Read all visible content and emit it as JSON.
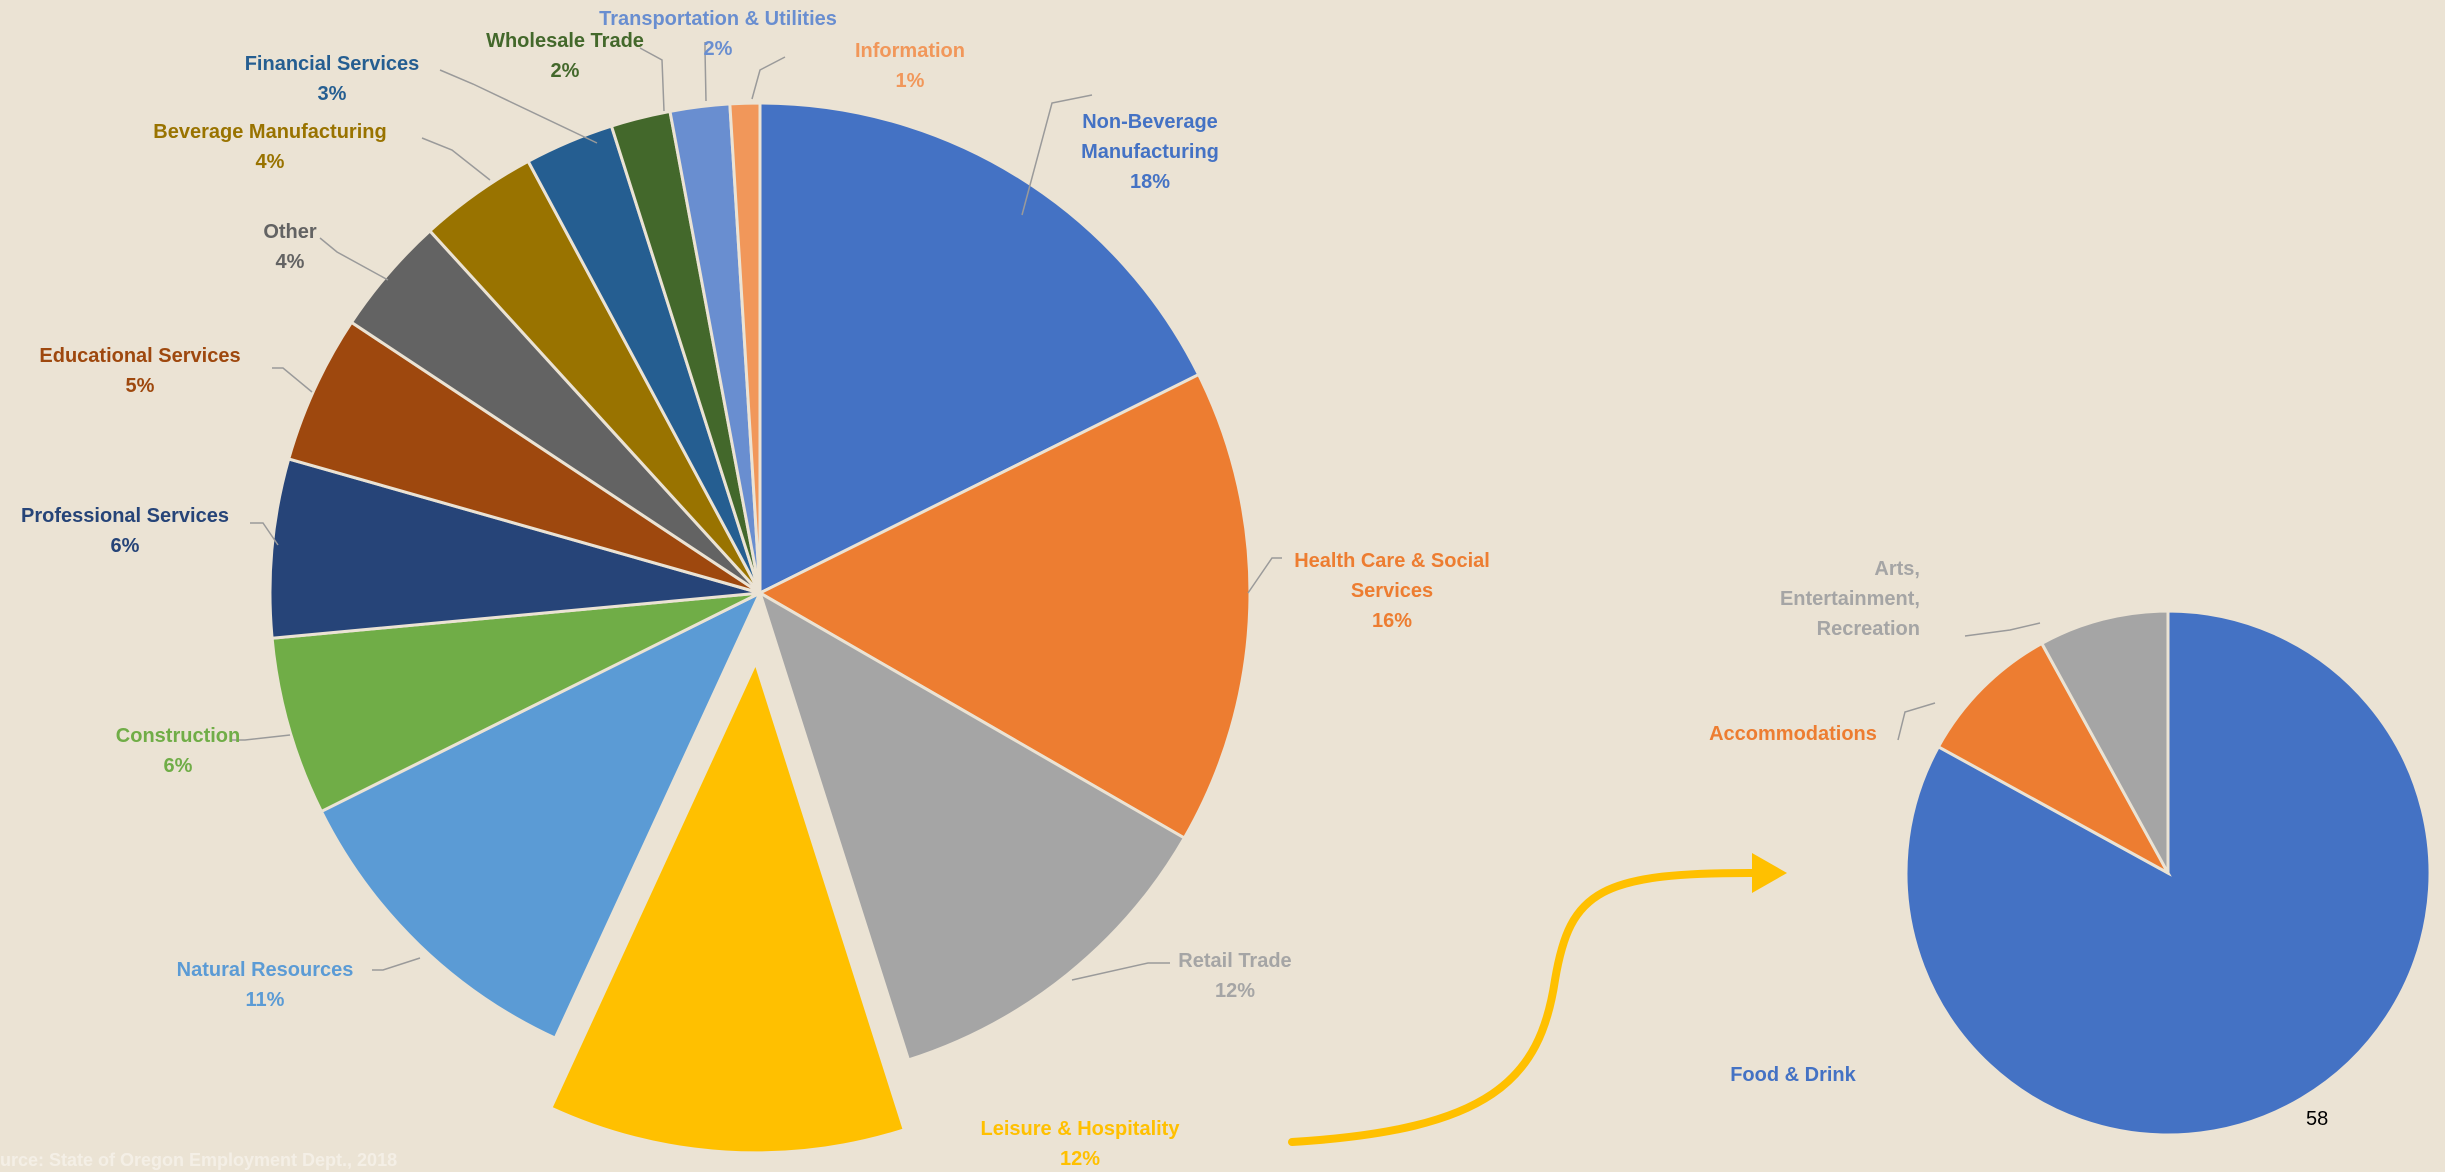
{
  "chart_data": [
    {
      "type": "pie",
      "slices": [
        {
          "label": "Non-Beverage Manufacturing",
          "label_lines": [
            "Non-Beverage",
            "Manufacturing"
          ],
          "pct_label": "18%",
          "value": 18,
          "color": "#4472c4"
        },
        {
          "label": "Health Care & Social Services",
          "label_lines": [
            "Health Care & Social",
            "Services"
          ],
          "pct_label": "16%",
          "value": 16,
          "color": "#ed7d31"
        },
        {
          "label": "Retail Trade",
          "label_lines": [
            "Retail Trade"
          ],
          "pct_label": "12%",
          "value": 12,
          "color": "#a5a5a5"
        },
        {
          "label": "Leisure & Hospitality",
          "label_lines": [
            "Leisure & Hospitality"
          ],
          "pct_label": "12%",
          "value": 12,
          "color": "#ffc000",
          "exploded": true
        },
        {
          "label": "Natural Resources",
          "label_lines": [
            "Natural Resources"
          ],
          "pct_label": "11%",
          "value": 11,
          "color": "#5b9bd5"
        },
        {
          "label": "Construction",
          "label_lines": [
            "Construction"
          ],
          "pct_label": "6%",
          "value": 6,
          "color": "#70ad47"
        },
        {
          "label": "Professional Services",
          "label_lines": [
            "Professional Services"
          ],
          "pct_label": "6%",
          "value": 6,
          "color": "#264478"
        },
        {
          "label": "Educational Services",
          "label_lines": [
            "Educational Services"
          ],
          "pct_label": "5%",
          "value": 5,
          "color": "#9e480e"
        },
        {
          "label": "Other",
          "label_lines": [
            "Other"
          ],
          "pct_label": "4%",
          "value": 4,
          "color": "#636363"
        },
        {
          "label": "Beverage Manufacturing",
          "label_lines": [
            "Beverage Manufacturing"
          ],
          "pct_label": "4%",
          "value": 4,
          "color": "#997300"
        },
        {
          "label": "Financial Services",
          "label_lines": [
            "Financial Services"
          ],
          "pct_label": "3%",
          "value": 3,
          "color": "#255e91"
        },
        {
          "label": "Wholesale Trade",
          "label_lines": [
            "Wholesale Trade"
          ],
          "pct_label": "2%",
          "value": 2,
          "color": "#43682b"
        },
        {
          "label": "Transportation & Utilities",
          "label_lines": [
            "Transportation & Utilities"
          ],
          "pct_label": "2%",
          "value": 2,
          "color": "#698ed0"
        },
        {
          "label": "Information",
          "label_lines": [
            "Information"
          ],
          "pct_label": "1%",
          "value": 1,
          "color": "#f1975a"
        }
      ]
    },
    {
      "type": "pie",
      "slices": [
        {
          "label": "Food & Drink",
          "label_lines": [
            "Food & Drink"
          ],
          "value": 83,
          "color": "#4472c4",
          "label_color": "#4472c4"
        },
        {
          "label": "Accommodations",
          "label_lines": [
            "Accommodations"
          ],
          "value": 9,
          "color": "#ed7d31",
          "label_color": "#ed7d31"
        },
        {
          "label": "Arts, Entertainment, Recreation",
          "label_lines": [
            "Arts,",
            "Entertainment,",
            "Recreation"
          ],
          "value": 8,
          "color": "#a5a5a5",
          "label_color": "#a5a5a5"
        }
      ]
    }
  ],
  "arrow_color": "#ffc000",
  "footer": {
    "source": "urce: State of Oregon Employment Dept., 2018",
    "page_number": "58"
  }
}
